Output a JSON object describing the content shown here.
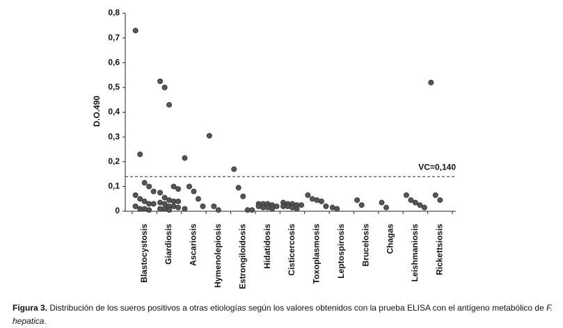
{
  "chart_data": {
    "type": "strip",
    "y_label": "D.O.490",
    "categories": [
      "Blastocystosis",
      "Giardiosis",
      "Ascariosis",
      "Hymenolepiosis",
      "Estrongiloidosis",
      "Hidatidosis",
      "Cisticercosis",
      "Toxoplasmosis",
      "Leptospirosis",
      "Brucelosis",
      "Chagas",
      "Leishmaniosis",
      "Rickettsiosis"
    ],
    "values": [
      [
        0.73,
        0.23,
        0.115,
        0.1,
        0.08,
        0.065,
        0.05,
        0.04,
        0.03,
        0.03,
        0.02,
        0.01,
        0.01,
        0.005
      ],
      [
        0.525,
        0.5,
        0.43,
        0.1,
        0.09,
        0.075,
        0.055,
        0.045,
        0.04,
        0.04,
        0.035,
        0.03,
        0.02,
        0.02,
        0.015,
        0.01,
        0.01,
        0.005
      ],
      [
        0.215,
        0.1,
        0.08,
        0.05,
        0.02,
        0.01
      ],
      [
        0.305,
        0.02,
        0.005
      ],
      [
        0.17,
        0.095,
        0.06,
        0.005,
        0.005
      ],
      [
        0.03,
        0.03,
        0.03,
        0.025,
        0.02,
        0.02,
        0.015,
        0.015,
        0.01
      ],
      [
        0.035,
        0.03,
        0.03,
        0.025,
        0.025,
        0.02,
        0.02,
        0.015,
        0.01
      ],
      [
        0.065,
        0.05,
        0.045,
        0.04,
        0.02
      ],
      [
        0.015,
        0.01
      ],
      [
        0.045,
        0.025
      ],
      [
        0.035,
        0.015
      ],
      [
        0.065,
        0.045,
        0.035,
        0.025,
        0.015
      ],
      [
        0.52,
        0.065,
        0.045
      ]
    ],
    "color": "#555555",
    "ylim": [
      0,
      0.8
    ],
    "yticks": [
      0,
      {
        "value": 0.1,
        "label": "0,1"
      },
      {
        "value": 0.2,
        "label": "0,2"
      },
      {
        "value": 0.3,
        "label": "0,3"
      },
      {
        "value": 0.4,
        "label": "0,4"
      },
      {
        "value": 0.5,
        "label": "0,5"
      },
      {
        "value": 0.6,
        "label": "0,6"
      },
      {
        "value": 0.7,
        "label": "0,7"
      },
      {
        "value": 0.8,
        "label": "0,8"
      }
    ],
    "threshold": {
      "value": 0.14,
      "label": "VC=0,140"
    }
  },
  "caption": {
    "label": "Figura 3.",
    "text": " Distribución de los sueros positivos a otras etiologías según los valores obtenidos con la prueba ELISA con el antígeno metabólico de ",
    "italic": "F. hepatica",
    "end": "."
  }
}
